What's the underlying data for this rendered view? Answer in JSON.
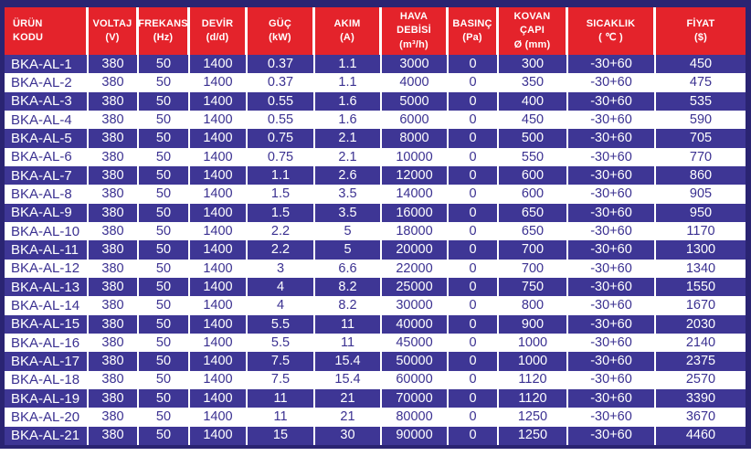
{
  "colors": {
    "header_bg": "#e4232b",
    "header_text": "#ffffff",
    "row_dark_bg": "#3e3695",
    "row_dark_text": "#ffffff",
    "row_light_bg": "#ffffff",
    "row_light_text": "#3b3191",
    "border": "#2a2472",
    "separator": "#ffffff"
  },
  "table": {
    "columns": [
      {
        "id": "urun-kodu",
        "lines": [
          "ÜRÜN",
          "KODU"
        ]
      },
      {
        "id": "voltaj",
        "lines": [
          "VOLTAJ",
          "(V)"
        ]
      },
      {
        "id": "frekans",
        "lines": [
          "FREKANS",
          "(Hz)"
        ]
      },
      {
        "id": "devir",
        "lines": [
          "DEVİR",
          "(d/d)"
        ]
      },
      {
        "id": "guc",
        "lines": [
          "GÜÇ",
          "(kW)"
        ]
      },
      {
        "id": "akim",
        "lines": [
          "AKIM",
          "(A)"
        ]
      },
      {
        "id": "hava-debisi",
        "lines": [
          "HAVA",
          "DEBİSİ",
          "(m³/h)"
        ]
      },
      {
        "id": "basinc",
        "lines": [
          "BASINÇ",
          "(Pa)"
        ]
      },
      {
        "id": "kovan-capi",
        "lines": [
          "KOVAN",
          "ÇAPI",
          "Ø (mm)"
        ]
      },
      {
        "id": "sicaklik",
        "lines": [
          "SICAKLIK",
          "( ℃ )"
        ]
      },
      {
        "id": "fiyat",
        "lines": [
          "FİYAT",
          "($)"
        ]
      }
    ],
    "rows": [
      [
        "BKA-AL-1",
        "380",
        "50",
        "1400",
        "0.37",
        "1.1",
        "3000",
        "0",
        "300",
        "-30+60",
        "450"
      ],
      [
        "BKA-AL-2",
        "380",
        "50",
        "1400",
        "0.37",
        "1.1",
        "4000",
        "0",
        "350",
        "-30+60",
        "475"
      ],
      [
        "BKA-AL-3",
        "380",
        "50",
        "1400",
        "0.55",
        "1.6",
        "5000",
        "0",
        "400",
        "-30+60",
        "535"
      ],
      [
        "BKA-AL-4",
        "380",
        "50",
        "1400",
        "0.55",
        "1.6",
        "6000",
        "0",
        "450",
        "-30+60",
        "590"
      ],
      [
        "BKA-AL-5",
        "380",
        "50",
        "1400",
        "0.75",
        "2.1",
        "8000",
        "0",
        "500",
        "-30+60",
        "705"
      ],
      [
        "BKA-AL-6",
        "380",
        "50",
        "1400",
        "0.75",
        "2.1",
        "10000",
        "0",
        "550",
        "-30+60",
        "770"
      ],
      [
        "BKA-AL-7",
        "380",
        "50",
        "1400",
        "1.1",
        "2.6",
        "12000",
        "0",
        "600",
        "-30+60",
        "860"
      ],
      [
        "BKA-AL-8",
        "380",
        "50",
        "1400",
        "1.5",
        "3.5",
        "14000",
        "0",
        "600",
        "-30+60",
        "905"
      ],
      [
        "BKA-AL-9",
        "380",
        "50",
        "1400",
        "1.5",
        "3.5",
        "16000",
        "0",
        "650",
        "-30+60",
        "950"
      ],
      [
        "BKA-AL-10",
        "380",
        "50",
        "1400",
        "2.2",
        "5",
        "18000",
        "0",
        "650",
        "-30+60",
        "1170"
      ],
      [
        "BKA-AL-11",
        "380",
        "50",
        "1400",
        "2.2",
        "5",
        "20000",
        "0",
        "700",
        "-30+60",
        "1300"
      ],
      [
        "BKA-AL-12",
        "380",
        "50",
        "1400",
        "3",
        "6.6",
        "22000",
        "0",
        "700",
        "-30+60",
        "1340"
      ],
      [
        "BKA-AL-13",
        "380",
        "50",
        "1400",
        "4",
        "8.2",
        "25000",
        "0",
        "750",
        "-30+60",
        "1550"
      ],
      [
        "BKA-AL-14",
        "380",
        "50",
        "1400",
        "4",
        "8.2",
        "30000",
        "0",
        "800",
        "-30+60",
        "1670"
      ],
      [
        "BKA-AL-15",
        "380",
        "50",
        "1400",
        "5.5",
        "11",
        "40000",
        "0",
        "900",
        "-30+60",
        "2030"
      ],
      [
        "BKA-AL-16",
        "380",
        "50",
        "1400",
        "5.5",
        "11",
        "45000",
        "0",
        "1000",
        "-30+60",
        "2140"
      ],
      [
        "BKA-AL-17",
        "380",
        "50",
        "1400",
        "7.5",
        "15.4",
        "50000",
        "0",
        "1000",
        "-30+60",
        "2375"
      ],
      [
        "BKA-AL-18",
        "380",
        "50",
        "1400",
        "7.5",
        "15.4",
        "60000",
        "0",
        "1120",
        "-30+60",
        "2570"
      ],
      [
        "BKA-AL-19",
        "380",
        "50",
        "1400",
        "11",
        "21",
        "70000",
        "0",
        "1120",
        "-30+60",
        "3390"
      ],
      [
        "BKA-AL-20",
        "380",
        "50",
        "1400",
        "11",
        "21",
        "80000",
        "0",
        "1250",
        "-30+60",
        "3670"
      ],
      [
        "BKA-AL-21",
        "380",
        "50",
        "1400",
        "15",
        "30",
        "90000",
        "0",
        "1250",
        "-30+60",
        "4460"
      ]
    ]
  }
}
